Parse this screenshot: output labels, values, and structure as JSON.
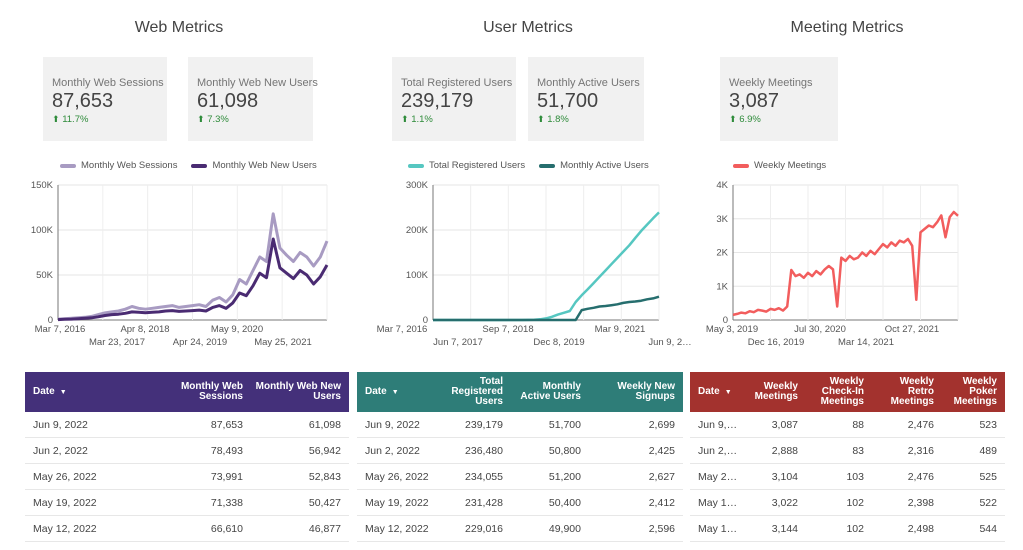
{
  "sections": [
    {
      "title": "Web Metrics"
    },
    {
      "title": "User Metrics"
    },
    {
      "title": "Meeting Metrics"
    }
  ],
  "kpis": [
    {
      "label": "Monthly Web Sessions",
      "value": "87,653",
      "delta": "11.7%"
    },
    {
      "label": "Monthly Web New Users",
      "value": "61,098",
      "delta": "7.3%"
    },
    {
      "label": "Total Registered Users",
      "value": "239,179",
      "delta": "1.1%"
    },
    {
      "label": "Monthly Active Users",
      "value": "51,700",
      "delta": "1.8%"
    },
    {
      "label": "Weekly Meetings",
      "value": "3,087",
      "delta": "6.9%"
    }
  ],
  "delta_arrow": "⬆",
  "colors": {
    "web_sessions": "#a89bc2",
    "web_new_users": "#4a2b72",
    "total_registered": "#56c7c1",
    "monthly_active": "#266e6e",
    "weekly_meetings": "#f25d5d",
    "table_web": "#44307a",
    "table_users": "#2e7d78",
    "table_meetings": "#a3322e",
    "kpi_up": "#2e8b3a"
  },
  "chart_data": [
    {
      "type": "line",
      "y_ticks": [
        "0",
        "50K",
        "100K",
        "150K"
      ],
      "ylim": [
        0,
        150000
      ],
      "x_ticks_top": [
        "Mar 7, 2016",
        "Apr 8, 2018",
        "May 9, 2020"
      ],
      "x_ticks_bottom": [
        "Mar 23, 2017",
        "Apr 24, 2019",
        "May 25, 2021"
      ],
      "grid": true,
      "legend": "top",
      "series": [
        {
          "name": "Monthly Web Sessions",
          "values": [
            1000,
            1500,
            2000,
            2500,
            3000,
            4000,
            6000,
            8000,
            9000,
            10000,
            12000,
            15000,
            13000,
            12000,
            13000,
            14000,
            15000,
            16000,
            14000,
            15000,
            16000,
            17000,
            15000,
            22000,
            25000,
            20000,
            28000,
            45000,
            40000,
            55000,
            70000,
            65000,
            118000,
            80000,
            72000,
            65000,
            75000,
            70000,
            60000,
            70000,
            87653
          ]
        },
        {
          "name": "Monthly Web New Users",
          "values": [
            500,
            800,
            1000,
            1500,
            2000,
            2500,
            3500,
            5000,
            6000,
            6500,
            7500,
            9000,
            8500,
            8000,
            8500,
            9000,
            10000,
            10500,
            9500,
            10000,
            10500,
            11000,
            10000,
            14000,
            16000,
            13000,
            19000,
            30000,
            27000,
            38000,
            52000,
            47000,
            90000,
            58000,
            52000,
            46000,
            55000,
            50000,
            40000,
            48000,
            61098
          ]
        }
      ]
    },
    {
      "type": "line",
      "y_ticks": [
        "0",
        "100K",
        "200K",
        "300K"
      ],
      "ylim": [
        0,
        300000
      ],
      "x_ticks_top": [
        "Mar 7, 2016",
        "Sep 7, 2018",
        "Mar 9, 2021"
      ],
      "x_ticks_bottom": [
        "Jun 7, 2017",
        "Dec 8, 2019",
        "Jun 9, 2…"
      ],
      "grid": true,
      "legend": "top",
      "series": [
        {
          "name": "Total Registered Users",
          "values": [
            0,
            0,
            0,
            0,
            0,
            0,
            0,
            0,
            0,
            0,
            0,
            0,
            0,
            0,
            0,
            0,
            200,
            600,
            1500,
            3500,
            7000,
            12000,
            16000,
            20000,
            40000,
            55000,
            68000,
            82000,
            96000,
            110000,
            124000,
            138000,
            152000,
            166000,
            182000,
            198000,
            212000,
            226000,
            239179
          ]
        },
        {
          "name": "Monthly Active Users",
          "values": [
            0,
            0,
            0,
            0,
            0,
            0,
            0,
            0,
            0,
            0,
            0,
            0,
            0,
            0,
            0,
            0,
            0,
            0,
            0,
            0,
            0,
            0,
            0,
            0,
            0,
            22000,
            25000,
            27000,
            30000,
            31000,
            33000,
            35000,
            38000,
            40000,
            41000,
            43000,
            46000,
            48000,
            51700
          ]
        }
      ]
    },
    {
      "type": "line",
      "y_ticks": [
        "0",
        "1K",
        "2K",
        "3K",
        "4K"
      ],
      "ylim": [
        0,
        4000
      ],
      "x_ticks_top": [
        "May 3, 2019",
        "Jul 30, 2020",
        "Oct 27, 2021"
      ],
      "x_ticks_bottom": [
        "Dec 16, 2019",
        "Mar 14, 2021"
      ],
      "grid": true,
      "legend": "top",
      "series": [
        {
          "name": "Weekly Meetings",
          "values": [
            150,
            180,
            220,
            200,
            260,
            230,
            300,
            280,
            250,
            330,
            300,
            350,
            280,
            400,
            1480,
            1300,
            1350,
            1250,
            1400,
            1300,
            1450,
            1350,
            1500,
            1600,
            1500,
            400,
            1850,
            1750,
            1900,
            1800,
            1850,
            2000,
            1900,
            2050,
            1950,
            2100,
            2250,
            2150,
            2300,
            2200,
            2350,
            2300,
            2400,
            2200,
            600,
            2600,
            2700,
            2800,
            2750,
            2900,
            3100,
            2450,
            3050,
            3200,
            3087
          ]
        }
      ]
    }
  ],
  "tables": [
    {
      "columns": [
        "Date",
        "Monthly Web Sessions",
        "Monthly Web New Users"
      ],
      "rows": [
        [
          "Jun 9, 2022",
          "87,653",
          "61,098"
        ],
        [
          "Jun 2, 2022",
          "78,493",
          "56,942"
        ],
        [
          "May 26, 2022",
          "73,991",
          "52,843"
        ],
        [
          "May 19, 2022",
          "71,338",
          "50,427"
        ],
        [
          "May 12, 2022",
          "66,610",
          "46,877"
        ]
      ]
    },
    {
      "columns": [
        "Date",
        "Total Registered Users",
        "Monthly Active Users",
        "Weekly New Signups"
      ],
      "rows": [
        [
          "Jun 9, 2022",
          "239,179",
          "51,700",
          "2,699"
        ],
        [
          "Jun 2, 2022",
          "236,480",
          "50,800",
          "2,425"
        ],
        [
          "May 26, 2022",
          "234,055",
          "51,200",
          "2,627"
        ],
        [
          "May 19, 2022",
          "231,428",
          "50,400",
          "2,412"
        ],
        [
          "May 12, 2022",
          "229,016",
          "49,900",
          "2,596"
        ]
      ]
    },
    {
      "columns": [
        "Date",
        "Weekly Meetings",
        "Weekly Check-In Meetings",
        "Weekly Retro Meetings",
        "Weekly Poker Meetings"
      ],
      "rows": [
        [
          "Jun 9, 20…",
          "3,087",
          "88",
          "2,476",
          "523"
        ],
        [
          "Jun 2, 20…",
          "2,888",
          "83",
          "2,316",
          "489"
        ],
        [
          "May 26, …",
          "3,104",
          "103",
          "2,476",
          "525"
        ],
        [
          "May 19, …",
          "3,022",
          "102",
          "2,398",
          "522"
        ],
        [
          "May 12, …",
          "3,144",
          "102",
          "2,498",
          "544"
        ]
      ]
    }
  ],
  "sort_arrow": "▼"
}
